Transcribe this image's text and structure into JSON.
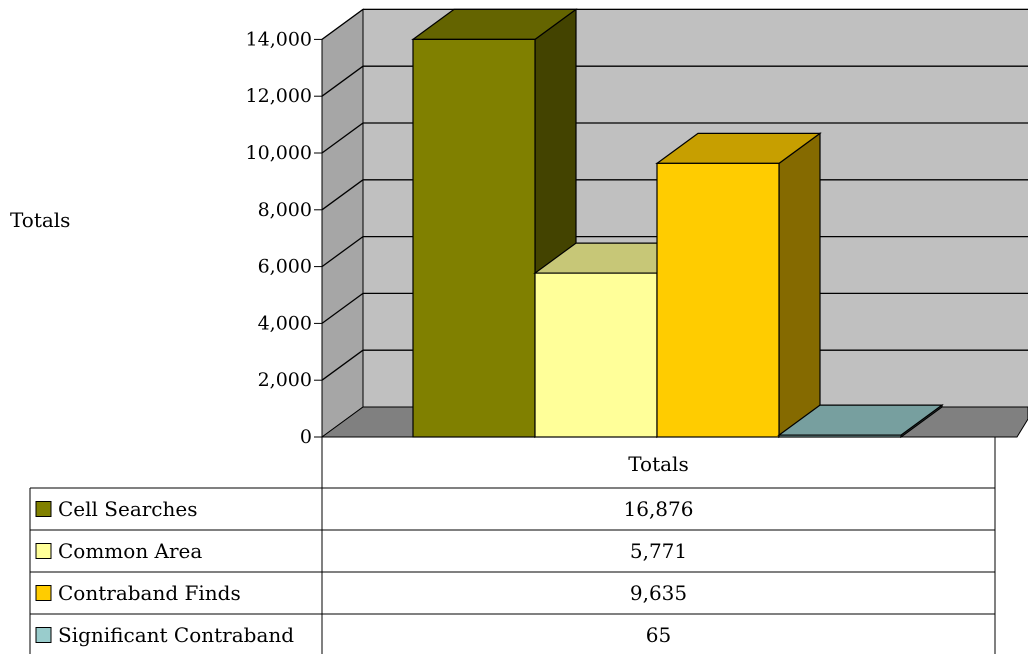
{
  "chart_data": {
    "type": "bar",
    "ylabel": "Totals",
    "category_label": "Totals",
    "ylim": [
      0,
      14000
    ],
    "yticks": [
      0,
      2000,
      4000,
      6000,
      8000,
      10000,
      12000,
      14000
    ],
    "ytick_labels": [
      "0",
      "2,000",
      "4,000",
      "6,000",
      "8,000",
      "10,000",
      "12,000",
      "14,000"
    ],
    "grid": true,
    "series": [
      {
        "name": "Cell Searches",
        "value": 16876,
        "value_label": "16,876",
        "color": "#808000"
      },
      {
        "name": "Common Area",
        "value": 5771,
        "value_label": "5,771",
        "color": "#FFFF99"
      },
      {
        "name": "Contraband Finds",
        "value": 9635,
        "value_label": "9,635",
        "color": "#FFCC00"
      },
      {
        "name": "Significant Contraband",
        "value": 65,
        "value_label": "65",
        "color": "#99CCCC"
      }
    ],
    "colors": {
      "back_wall": "#C0C0C0",
      "side_wall": "#A6A6A6",
      "floor": "#808080",
      "floor_front": "#5A5A5A"
    }
  }
}
